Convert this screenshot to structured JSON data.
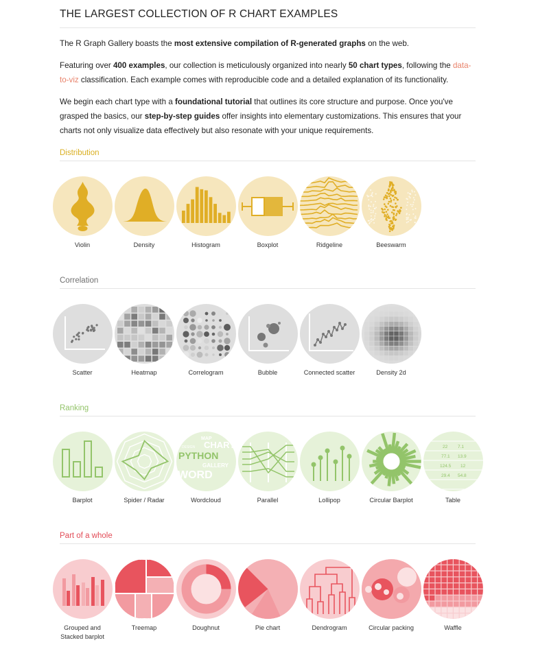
{
  "title": "THE LARGEST COLLECTION OF R CHART EXAMPLES",
  "intro": {
    "p1_a": "The R Graph Gallery boasts the ",
    "p1_b": "most extensive compilation of R-generated graphs",
    "p1_c": " on the web.",
    "p2_a": "Featuring over ",
    "p2_b": "400 examples",
    "p2_c": ", our collection is meticulously organized into nearly ",
    "p2_d": "50 chart types",
    "p2_e": ", following the ",
    "p2_link": "data-to-viz",
    "p2_f": " classification. Each example comes with reproducible code and a detailed explanation of its functionality.",
    "p3_a": "We begin each chart type with a ",
    "p3_b": "foundational tutorial",
    "p3_c": " that outlines its core structure and purpose. Once you've grasped the basics, our ",
    "p3_d": "step-by-step guides",
    "p3_e": " offer insights into elementary customizations. This ensures that your charts not only visualize data effectively but also resonate with your unique requirements."
  },
  "sections": [
    {
      "title": "Distribution",
      "color": "#d9ae1f",
      "items": [
        "Violin",
        "Density",
        "Histogram",
        "Boxplot",
        "Ridgeline",
        "Beeswarm"
      ]
    },
    {
      "title": "Correlation",
      "color": "#6f6f6f",
      "items": [
        "Scatter",
        "Heatmap",
        "Correlogram",
        "Bubble",
        "Connected scatter",
        "Density 2d"
      ]
    },
    {
      "title": "Ranking",
      "color": "#93c46a",
      "items": [
        "Barplot",
        "Spider / Radar",
        "Wordcloud",
        "Parallel",
        "Lollipop",
        "Circular Barplot",
        "Table"
      ]
    },
    {
      "title": "Part of a whole",
      "color": "#e24c57",
      "items": [
        "Grouped and\nStacked barplot",
        "Treemap",
        "Doughnut",
        "Pie chart",
        "Dendrogram",
        "Circular packing",
        "Waffle"
      ]
    }
  ],
  "icons": {
    "distribution": [
      "violin-icon",
      "density-icon",
      "histogram-icon",
      "boxplot-icon",
      "ridgeline-icon",
      "beeswarm-icon"
    ],
    "correlation": [
      "scatter-icon",
      "heatmap-icon",
      "correlogram-icon",
      "bubble-icon",
      "connected-scatter-icon",
      "density-2d-icon"
    ],
    "ranking": [
      "barplot-icon",
      "spider-radar-icon",
      "wordcloud-icon",
      "parallel-icon",
      "lollipop-icon",
      "circular-barplot-icon",
      "table-icon"
    ],
    "part_of_whole": [
      "grouped-stacked-barplot-icon",
      "treemap-icon",
      "doughnut-icon",
      "pie-chart-icon",
      "dendrogram-icon",
      "circular-packing-icon",
      "waffle-icon"
    ]
  },
  "wordcloud_words": [
    "PYTHON",
    "WORD",
    "GALLERY",
    "CHART",
    "MAP",
    "DESIGN"
  ],
  "table_cells": [
    "22",
    "7.1",
    "77.1",
    "13.9",
    "124.5",
    "12",
    "29.4",
    "54.8"
  ],
  "palette": {
    "yellow_bg": "#f6e6bd",
    "yellow": "#e0ae26",
    "grey_bg": "#dedede",
    "grey": "#777777",
    "green_bg": "#e6f2d9",
    "green": "#93c46a",
    "red_bg": "#f8cccf",
    "red": "#e8545e"
  }
}
